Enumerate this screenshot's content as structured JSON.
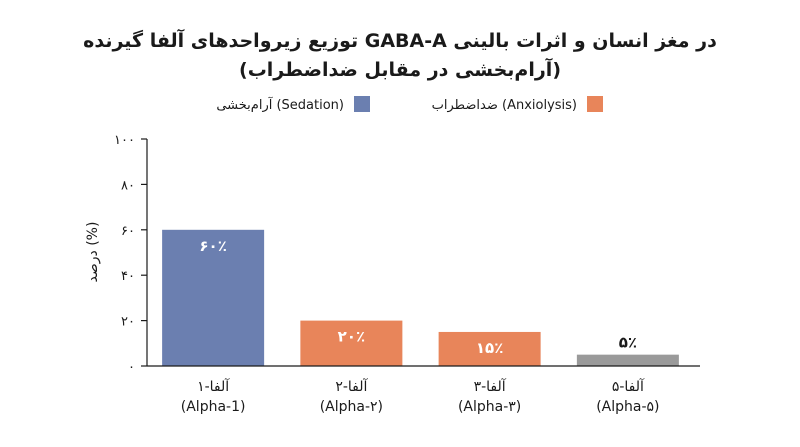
{
  "chart_data": {
    "type": "bar",
    "title_lines": [
      "توزیع زیرواحدهای آلفا گیرنده GABA-A در مغز انسان و اثرات بالینی",
      "(آرام‌بخشی در مقابل ضداضطراب)"
    ],
    "ylabel": "درصد (%)",
    "ylim": [
      0,
      100
    ],
    "yticks": [
      {
        "value": 0,
        "label": "۰"
      },
      {
        "value": 20,
        "label": "۲۰"
      },
      {
        "value": 40,
        "label": "۴۰"
      },
      {
        "value": 60,
        "label": "۶۰"
      },
      {
        "value": 80,
        "label": "۸۰"
      },
      {
        "value": 100,
        "label": "۱۰۰"
      }
    ],
    "legend": [
      {
        "label": "آرام‌بخشی (Sedation)",
        "color": "#6b7fb0"
      },
      {
        "label": "ضداضطراب (Anxiolysis)",
        "color": "#e8855a"
      }
    ],
    "categories": [
      {
        "line1": "آلفا-۱",
        "line2": "(Alpha-1)"
      },
      {
        "line1": "آلفا-۲",
        "line2": "(Alpha-۲)"
      },
      {
        "line1": "آلفا-۳",
        "line2": "(Alpha-۳)"
      },
      {
        "line1": "آلفا-۵",
        "line2": "(Alpha-۵)"
      }
    ],
    "values": [
      60,
      20,
      15,
      5
    ],
    "value_labels": [
      "۶۰٪",
      "۲۰٪",
      "۱۵٪",
      "۵٪"
    ],
    "colors": [
      "#6b7fb0",
      "#e8855a",
      "#e8855a",
      "#9a9a9a"
    ],
    "label_colors": [
      "#ffffff",
      "#ffffff",
      "#ffffff",
      "#1a1a1a"
    ]
  }
}
